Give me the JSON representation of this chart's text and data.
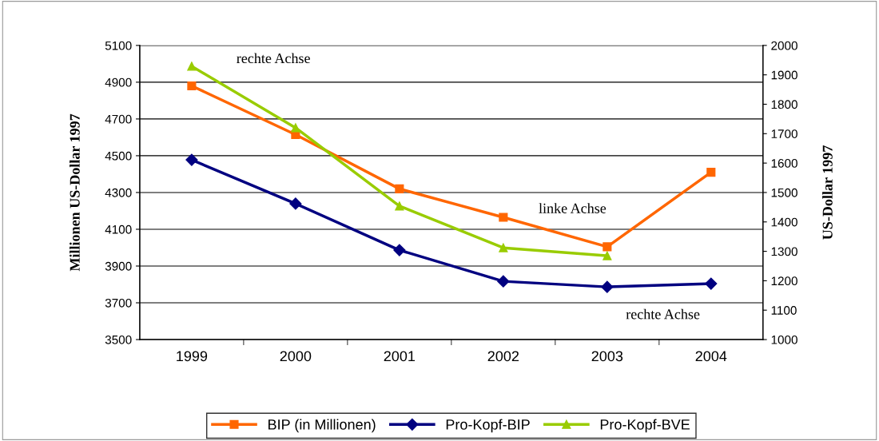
{
  "chart_data": {
    "type": "line",
    "categories": [
      "1999",
      "2000",
      "2001",
      "2002",
      "2003",
      "2004"
    ],
    "ylabel": "Millionen US-Dollar 1997",
    "y2label": "US-Dollar 1997",
    "ylim": [
      3500,
      5100
    ],
    "yticks": [
      3500,
      3700,
      3900,
      4100,
      4300,
      4500,
      4700,
      4900,
      5100
    ],
    "y2lim": [
      1000,
      2000
    ],
    "y2ticks": [
      1000,
      1100,
      1200,
      1300,
      1400,
      1500,
      1600,
      1700,
      1800,
      1900,
      2000
    ],
    "grid": "y",
    "legend": "bottom",
    "series": [
      {
        "name": "BIP (in Millionen)",
        "color": "#ff6600",
        "marker": "square",
        "values": [
          4880,
          4615,
          4320,
          4165,
          4005,
          4410
        ]
      },
      {
        "name": "Pro-Kopf-BIP",
        "color": "#000080",
        "marker": "diamond",
        "axis": "y2",
        "values": [
          1611,
          1462,
          1304,
          1198,
          1179,
          1190
        ]
      },
      {
        "name": "Pro-Kopf-BVE",
        "color": "#99cc00",
        "marker": "triangle",
        "axis": "y2",
        "values": [
          1929,
          1720,
          1454,
          1312,
          1285,
          null
        ]
      }
    ],
    "annotations": [
      "rechte Achse",
      "linke Achse",
      "rechte Achse"
    ]
  }
}
